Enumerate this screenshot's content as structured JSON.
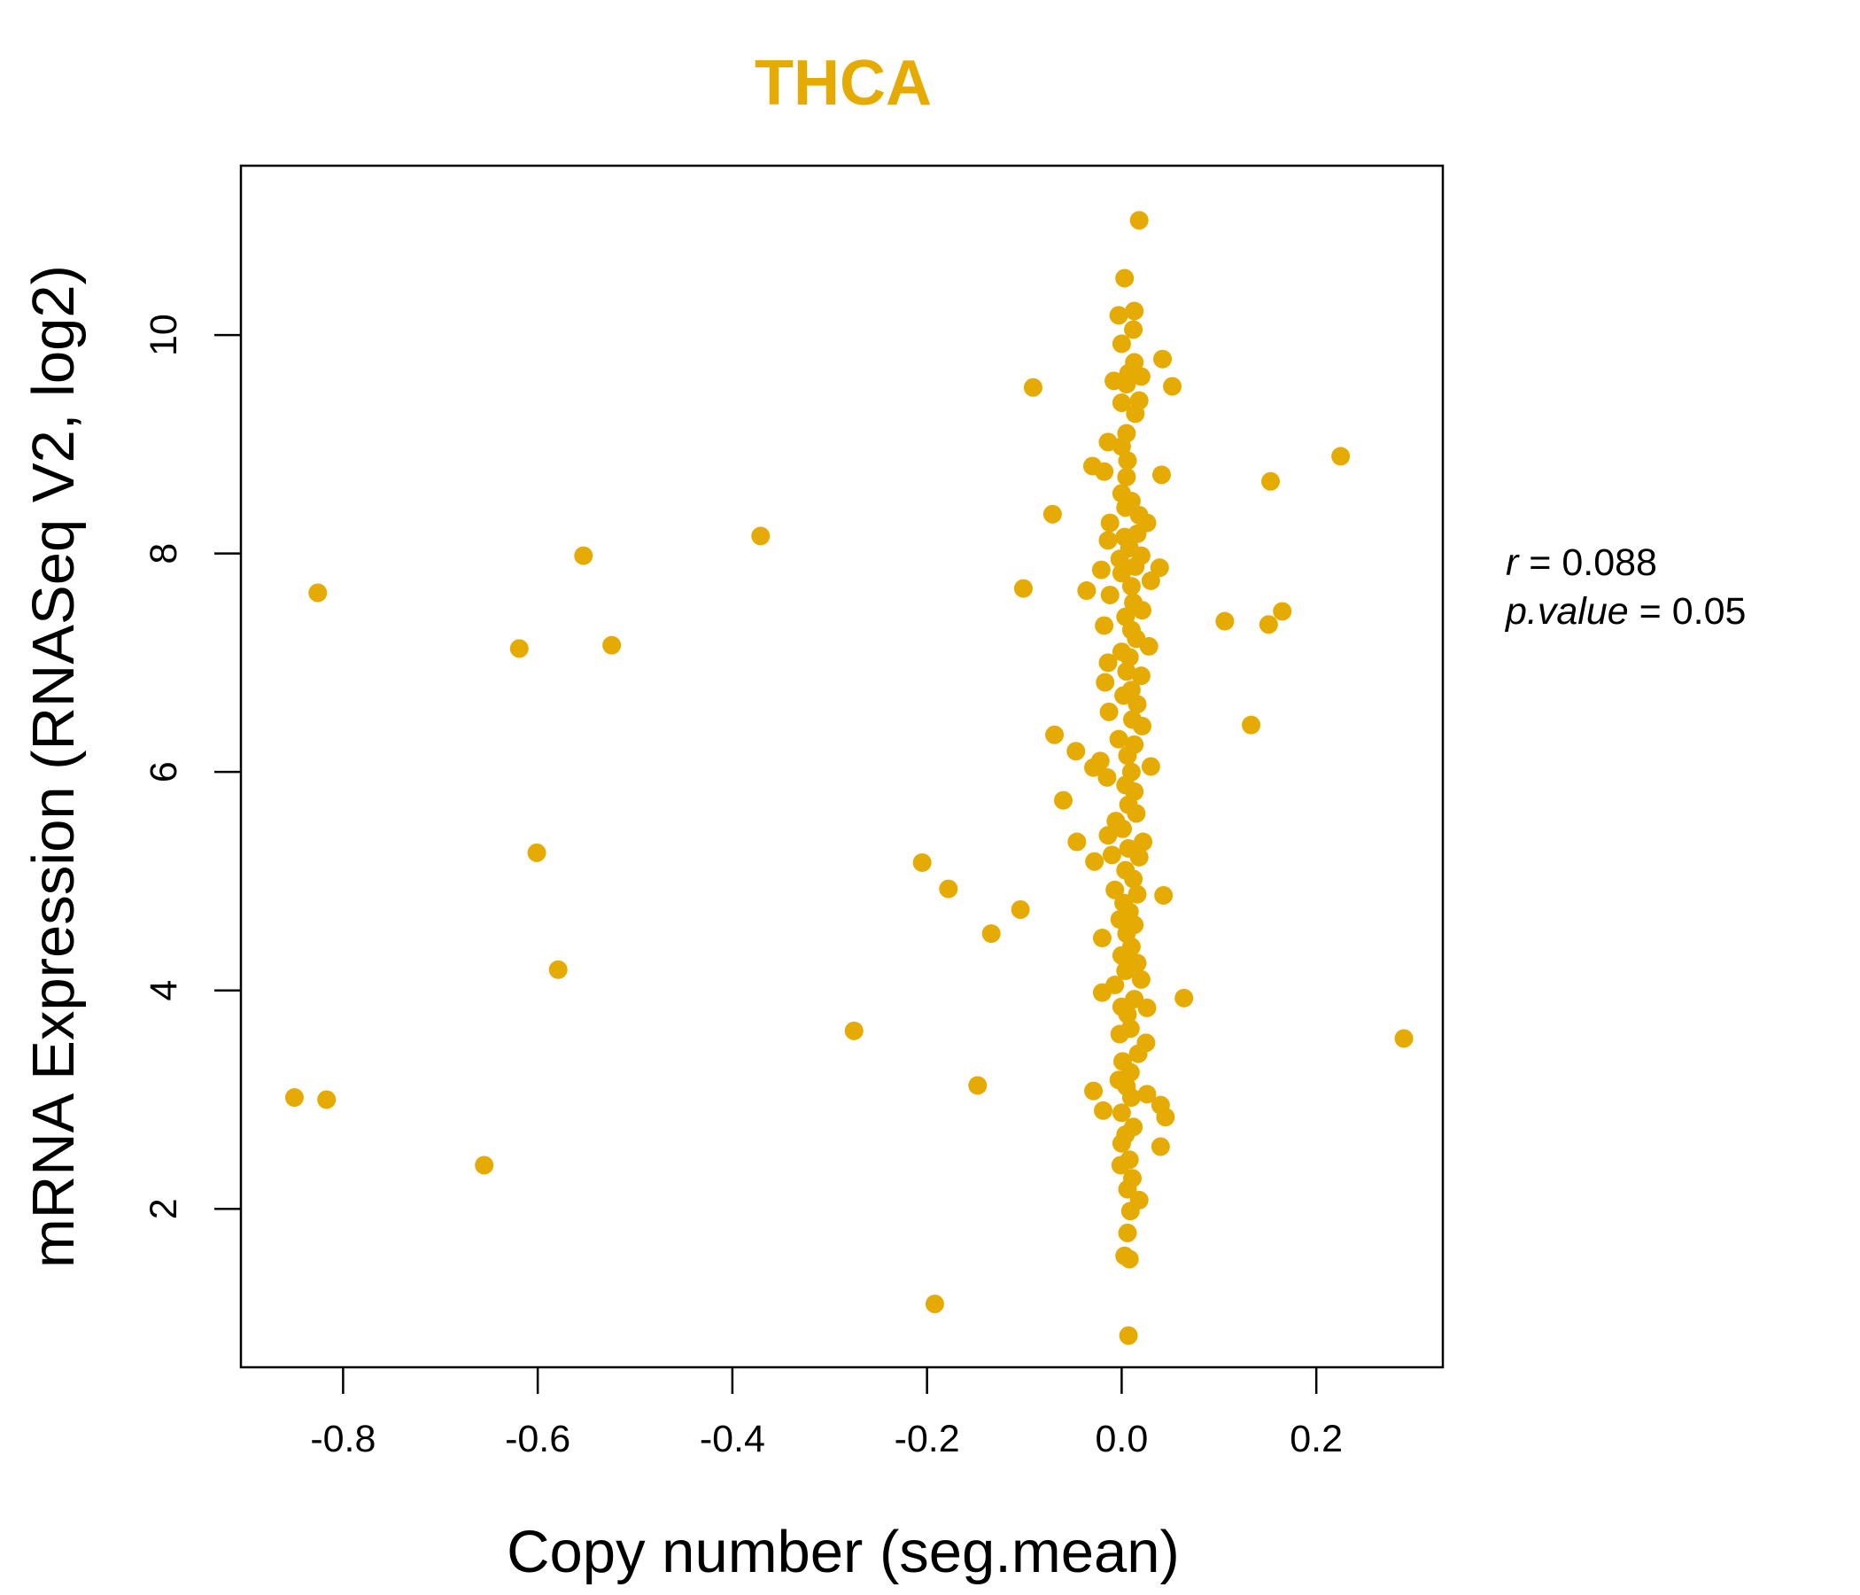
{
  "colors": {
    "accent": "#E6AB02",
    "axis": "#000000"
  },
  "chart_data": {
    "type": "scatter",
    "title": "THCA",
    "xlabel": "Copy number (seg.mean)",
    "ylabel": "mRNA Expression (RNASeq V2, log2)",
    "xlim": [
      -0.905,
      0.33
    ],
    "ylim": [
      0.55,
      11.55
    ],
    "xticks": [
      -0.8,
      -0.6,
      -0.4,
      -0.2,
      0.0,
      0.2
    ],
    "xtick_labels": [
      "-0.8",
      "-0.6",
      "-0.4",
      "-0.2",
      "0.0",
      "0.2"
    ],
    "yticks": [
      2,
      4,
      6,
      8,
      10
    ],
    "ytick_labels": [
      "2",
      "4",
      "6",
      "8",
      "10"
    ],
    "annotation": {
      "r_label": "r",
      "r_value": "0.088",
      "p_label": "p.value",
      "p_value": "0.05",
      "equals": "="
    },
    "points": [
      [
        0.018,
        11.05
      ],
      [
        0.003,
        10.52
      ],
      [
        0.013,
        10.22
      ],
      [
        -0.003,
        10.18
      ],
      [
        0.012,
        10.05
      ],
      [
        0.0,
        9.92
      ],
      [
        0.013,
        9.75
      ],
      [
        0.042,
        9.78
      ],
      [
        0.007,
        9.65
      ],
      [
        0.02,
        9.62
      ],
      [
        -0.008,
        9.58
      ],
      [
        0.005,
        9.55
      ],
      [
        0.052,
        9.53
      ],
      [
        -0.091,
        9.52
      ],
      [
        0.018,
        9.4
      ],
      [
        0.0,
        9.38
      ],
      [
        0.014,
        9.28
      ],
      [
        0.005,
        9.1
      ],
      [
        -0.014,
        9.02
      ],
      [
        0.0,
        8.98
      ],
      [
        0.006,
        8.85
      ],
      [
        -0.03,
        8.8
      ],
      [
        -0.018,
        8.75
      ],
      [
        0.041,
        8.72
      ],
      [
        0.005,
        8.7
      ],
      [
        0.0,
        8.55
      ],
      [
        0.01,
        8.48
      ],
      [
        0.004,
        8.42
      ],
      [
        0.018,
        8.35
      ],
      [
        -0.071,
        8.36
      ],
      [
        0.026,
        8.28
      ],
      [
        -0.012,
        8.28
      ],
      [
        0.016,
        8.18
      ],
      [
        0.003,
        8.15
      ],
      [
        -0.014,
        8.12
      ],
      [
        0.008,
        8.05
      ],
      [
        0.02,
        7.98
      ],
      [
        -0.002,
        7.95
      ],
      [
        0.014,
        7.88
      ],
      [
        0.039,
        7.87
      ],
      [
        -0.021,
        7.85
      ],
      [
        0.0,
        7.82
      ],
      [
        0.03,
        7.75
      ],
      [
        0.01,
        7.7
      ],
      [
        -0.101,
        7.68
      ],
      [
        -0.036,
        7.66
      ],
      [
        -0.012,
        7.62
      ],
      [
        0.012,
        7.55
      ],
      [
        0.021,
        7.48
      ],
      [
        0.004,
        7.42
      ],
      [
        -0.018,
        7.34
      ],
      [
        0.01,
        7.3
      ],
      [
        0.015,
        7.22
      ],
      [
        0.028,
        7.15
      ],
      [
        0.0,
        7.1
      ],
      [
        0.008,
        7.05
      ],
      [
        -0.014,
        7.0
      ],
      [
        0.005,
        6.92
      ],
      [
        0.02,
        6.88
      ],
      [
        -0.017,
        6.82
      ],
      [
        0.01,
        6.75
      ],
      [
        0.002,
        6.7
      ],
      [
        0.016,
        6.62
      ],
      [
        -0.013,
        6.55
      ],
      [
        0.011,
        6.48
      ],
      [
        0.021,
        6.42
      ],
      [
        -0.069,
        6.34
      ],
      [
        -0.003,
        6.3
      ],
      [
        0.013,
        6.25
      ],
      [
        -0.047,
        6.19
      ],
      [
        0.006,
        6.15
      ],
      [
        -0.022,
        6.1
      ],
      [
        0.03,
        6.05
      ],
      [
        -0.029,
        6.04
      ],
      [
        0.01,
        6.0
      ],
      [
        -0.015,
        5.95
      ],
      [
        0.004,
        5.88
      ],
      [
        0.013,
        5.82
      ],
      [
        -0.06,
        5.74
      ],
      [
        0.007,
        5.7
      ],
      [
        0.015,
        5.62
      ],
      [
        -0.006,
        5.55
      ],
      [
        0.001,
        5.48
      ],
      [
        -0.014,
        5.42
      ],
      [
        0.022,
        5.36
      ],
      [
        -0.046,
        5.36
      ],
      [
        0.007,
        5.3
      ],
      [
        -0.01,
        5.24
      ],
      [
        0.018,
        5.22
      ],
      [
        -0.028,
        5.18
      ],
      [
        0.004,
        5.1
      ],
      [
        0.012,
        5.02
      ],
      [
        -0.007,
        4.92
      ],
      [
        0.016,
        4.88
      ],
      [
        0.043,
        4.87
      ],
      [
        0.002,
        4.8
      ],
      [
        0.008,
        4.72
      ],
      [
        -0.002,
        4.65
      ],
      [
        0.013,
        4.6
      ],
      [
        0.005,
        4.52
      ],
      [
        -0.02,
        4.48
      ],
      [
        0.01,
        4.4
      ],
      [
        0.0,
        4.32
      ],
      [
        0.016,
        4.25
      ],
      [
        0.004,
        4.18
      ],
      [
        0.02,
        4.1
      ],
      [
        -0.007,
        4.05
      ],
      [
        -0.02,
        3.98
      ],
      [
        0.013,
        3.92
      ],
      [
        0.064,
        3.93
      ],
      [
        0.0,
        3.85
      ],
      [
        0.026,
        3.84
      ],
      [
        0.006,
        3.78
      ],
      [
        0.009,
        3.65
      ],
      [
        -0.002,
        3.6
      ],
      [
        0.025,
        3.52
      ],
      [
        0.017,
        3.42
      ],
      [
        0.001,
        3.35
      ],
      [
        0.009,
        3.25
      ],
      [
        -0.003,
        3.18
      ],
      [
        0.005,
        3.12
      ],
      [
        -0.029,
        3.08
      ],
      [
        0.026,
        3.05
      ],
      [
        0.01,
        3.02
      ],
      [
        0.04,
        2.95
      ],
      [
        -0.019,
        2.9
      ],
      [
        0.0,
        2.88
      ],
      [
        0.045,
        2.84
      ],
      [
        0.012,
        2.75
      ],
      [
        0.004,
        2.68
      ],
      [
        0.0,
        2.6
      ],
      [
        0.04,
        2.57
      ],
      [
        0.008,
        2.45
      ],
      [
        -0.001,
        2.4
      ],
      [
        0.011,
        2.28
      ],
      [
        0.006,
        2.18
      ],
      [
        0.018,
        2.08
      ],
      [
        0.009,
        1.98
      ],
      [
        0.006,
        1.78
      ],
      [
        0.003,
        1.57
      ],
      [
        0.008,
        1.54
      ],
      [
        0.007,
        0.84
      ],
      [
        -0.826,
        7.64
      ],
      [
        -0.619,
        7.13
      ],
      [
        -0.553,
        7.98
      ],
      [
        -0.524,
        7.16
      ],
      [
        -0.371,
        8.16
      ],
      [
        -0.601,
        5.26
      ],
      [
        -0.579,
        4.19
      ],
      [
        -0.85,
        3.02
      ],
      [
        -0.817,
        3.0
      ],
      [
        -0.655,
        2.4
      ],
      [
        -0.275,
        3.63
      ],
      [
        -0.205,
        5.17
      ],
      [
        -0.178,
        4.93
      ],
      [
        -0.134,
        4.52
      ],
      [
        -0.104,
        4.74
      ],
      [
        -0.148,
        3.13
      ],
      [
        -0.192,
        1.13
      ],
      [
        0.106,
        7.38
      ],
      [
        0.151,
        7.35
      ],
      [
        0.165,
        7.47
      ],
      [
        0.133,
        6.43
      ],
      [
        0.153,
        8.66
      ],
      [
        0.225,
        8.89
      ],
      [
        0.29,
        3.56
      ]
    ]
  }
}
